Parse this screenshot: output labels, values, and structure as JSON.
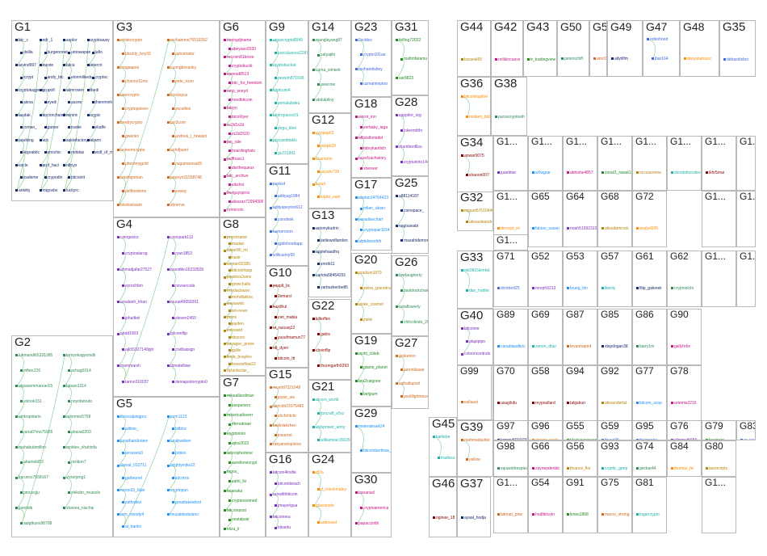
{
  "palette": [
    "#1a2a6c",
    "#2e8b57",
    "#d2691e",
    "#7b2fbe",
    "#1e90ff",
    "#c71585",
    "#228b22",
    "#b8860b",
    "#20b2aa",
    "#8b0000",
    "#4169e1",
    "#ff8c00"
  ],
  "groups": [
    {
      "id": "G1",
      "nodes": [
        "btc_c",
        "doilla",
        "arvind997",
        "tcrypt",
        "cryptokagyen",
        "alexa",
        "laudak",
        "roman_",
        "paulking",
        "legoabtic",
        "circle",
        "trademe",
        "ankitty",
        "mfr_1",
        "burgeonnet",
        "meste",
        "andy_btc",
        "grupofi",
        "eyedi",
        "doctorchain1",
        "gamer",
        "vck",
        "enochic",
        "prof_haci",
        "crypodin",
        "mtgoxbs",
        "explor",
        "untowapan",
        "bitca",
        "elonmilkedc",
        "alimrosen",
        "aszne",
        "minimi",
        "trader",
        "zaktafactory",
        "notidas",
        "nftoys",
        "bitcoinit",
        "luckyrc",
        "cryptoauxy",
        "tafio",
        "intercri",
        "cryptoc",
        "thedi",
        "thienminhanhain",
        "crypic",
        "ekaffe",
        "eltami",
        "wolf_of_malta"
      ]
    },
    {
      "id": "G2",
      "nodes": [
        "lukmandi65331385",
        "mfleic220",
        "akpasemmanuel15",
        "volook151",
        "airdropstario",
        "rana07mo75995",
        "mahabubmillon",
        "ahamobl53",
        "karuncs7558167",
        "pmcsojju",
        "joeolotk",
        "aalgtkuns98708",
        "tomyokagyomdk",
        "achag0314",
        "tatsan1314",
        "noyobioruto",
        "ralonmie5758",
        "ahava0203",
        "moldev_shahinfa",
        "richlion7",
        "victorjeng1",
        "shikder_mustolx",
        "shavea_nischal"
      ]
    },
    {
      "id": "G3",
      "nodes": [
        "mistercrypto",
        "blockly_boy33",
        "magaapes",
        "chance11ms",
        "tatercrypto",
        "cryptopoleen",
        "freebycrypto",
        "gwenko",
        "redeemcrypto",
        "phemmygold",
        "washigonian",
        "delftredomo",
        "blockstream",
        "mohamme75519292",
        "aptostrator",
        "cuongboxasky",
        "pete_rizzo",
        "foxctopus",
        "excellion",
        "jan3com",
        "andrew_l_howard",
        "oofofpaint",
        "nuguinaresa65",
        "papeyo31558748",
        "eveeg",
        "shnerve"
      ]
    },
    {
      "id": "G4",
      "nodes": [
        "coingecko",
        "cryptostarog",
        "ahmadjafar27527",
        "eyrechbm",
        "arsalanh_khan",
        "iphaitkel",
        "abdd1903",
        "ajk55327140pjh",
        "mammarsh",
        "tarioo310037",
        "coocpark112",
        "ryan1853",
        "mandiko16233509",
        "novaecoda",
        "murat49659301",
        "steven2450",
        "bitcoinflip",
        "civilbaisign",
        "donatelliwe",
        "deniapodocrypto0"
      ]
    },
    {
      "id": "G5",
      "nodes": [
        "thescalpingpro",
        "wilime_",
        "jonathandonten",
        "terozami3",
        "danial_010711",
        "gatbrunel",
        "moon33_blue",
        "satfedesi",
        "orm_moody4",
        "al_bankir",
        "jorm1123",
        "bitbloc",
        "vealpariken",
        "britisn",
        "mightymiks22",
        "kdcrkris",
        "cryptopun",
        "greattakeahod",
        "muzaldestelano"
      ]
    },
    {
      "id": "G6",
      "nodes": [
        "boringdjname",
        "abeyaso2020",
        "reccoin81bicee",
        "cryptobuckt",
        "speesd8513",
        "bitc_for_freedom",
        "omp_seeyd",
        "hoodbitcoin",
        "bitzyn",
        "btco0Iyer",
        "sc2d1s2d",
        "zz2d2520",
        "jan_rale",
        "hoardinghats",
        "puffhuss1",
        "darthequeux",
        "bitc_archive",
        "sikshoi",
        "thelguyspros",
        "aleszan72994396",
        "romocoin"
      ]
    },
    {
      "id": "G7",
      "nodes": [
        "mikeallandman",
        "kaspanero",
        "robertcatloverr",
        "4ferodriaer",
        "cryptorioto",
        "ajtss2022",
        "arbrcipherlone",
        "aurelionecrypt",
        "mgos_",
        "sathi_llo",
        "boanaka",
        "crypteosomed",
        "bitcoinpost",
        "nostalpair",
        "eliza_lr"
      ]
    },
    {
      "id": "G8",
      "nodes": [
        "proxxtrame",
        "madan",
        "viktor80_mt",
        "nasir",
        "usman92285",
        "bitcoinhasp",
        "pipixbxx2umv",
        "gniwchallo",
        "erlvdacbazer",
        "mohdtaktos",
        "wanaweb",
        "sm-rever",
        "pumx",
        "jayden",
        "cxfoswid",
        "dezocn",
        "savagec_prime",
        "gullis",
        "linda_bnayles",
        "breezeflow22",
        "dylanleclair_"
      ]
    },
    {
      "id": "G9",
      "nodes": [
        "atgaxcrypto8045",
        "burcukanexi2287",
        "cryptobuckat",
        "nessim871696",
        "kriptcum4",
        "xemalubdeu",
        "elrdropavoc01",
        "dogu_tibet",
        "piizzanditakis",
        "gc231991"
      ]
    },
    {
      "id": "G10",
      "nodes": [
        "jetaplt_bc",
        "0xmarcl",
        "kuzdhul",
        "ciet_mabia",
        "al_razzaq12",
        "yusufmamun77",
        "nft_dyen",
        "bitcoin_ttt"
      ]
    },
    {
      "id": "G11",
      "nodes": [
        "bankof",
        "adityag1984",
        "adityapeyton612",
        "coindesk",
        "kameronsn",
        "rgblnhoodapp",
        "willicanny99"
      ]
    },
    {
      "id": "G12",
      "nodes": [
        "yyyipup62",
        "mzipb29",
        "0xaronrix",
        "uzyahr735",
        "foxurl",
        "kripto_user"
      ]
    },
    {
      "id": "G13",
      "nodes": [
        "antonykudrin",
        "beltewolfanden",
        "applehaadhq",
        "smrtb11",
        "carlota58454291",
        "yarbuzkenbetl5"
      ]
    },
    {
      "id": "G14",
      "nodes": [
        "manglayang87",
        "satyajitn",
        "cuma_simsek",
        "aviecow",
        "abdulpiloy"
      ]
    },
    {
      "id": "G15",
      "nodes": [
        "mcehtl7221048",
        "yiyan_uw",
        "derickb72075480",
        "chchrhlchr",
        "beklrdekrhen",
        "insurent",
        "rakyanstopleine"
      ]
    },
    {
      "id": "G16",
      "nodes": [
        "bitcoin4lindle",
        "bitcoinbeach",
        "runwithbitcoin",
        "jmayerigua",
        "bitcoinera",
        "bitsedu"
      ]
    },
    {
      "id": "G17",
      "nodes": [
        "chelan14764423",
        "milan_ukani",
        "paradisechart",
        "cryptopair1154",
        "alptekinerbilr"
      ]
    },
    {
      "id": "G18",
      "nodes": [
        "cinrot_inrr",
        "verbaby_iaga",
        "offizielloriedel",
        "fabrykantlich",
        "nusxfzachsitory",
        "xhenver"
      ]
    },
    {
      "id": "G19",
      "nodes": [
        "motti_coleb",
        "giants_planet",
        "bra2caignee",
        "belgium"
      ]
    },
    {
      "id": "G20",
      "nodes": [
        "pradwin1879",
        "swiss_grandma",
        "stoke_cosmet",
        "jmilei"
      ]
    },
    {
      "id": "G21",
      "nodes": [
        "decen_world",
        "foxcraft_x0yz",
        "shibpower_army",
        "williamsac35639"
      ]
    },
    {
      "id": "G22",
      "nodes": [
        "killerflex",
        "gabis",
        "cheinflip",
        "thuongarth9293"
      ]
    },
    {
      "id": "G23",
      "nodes": [
        "0xcbbic",
        "crypto101ae",
        "muhandisbey",
        "uzmankriptoo"
      ]
    },
    {
      "id": "G24",
      "nodes": [
        "dt2a",
        "d_checkmaley",
        "glassnode",
        "arbinvest"
      ]
    },
    {
      "id": "G25",
      "nodes": [
        "a88114187",
        "coinspace_",
        "nagisanabi",
        "mazahidemorhwi1"
      ]
    },
    {
      "id": "G26",
      "nodes": [
        "bwdaugherty",
        "bavblockchain",
        "notaflowerly",
        "chilcolindo_2017"
      ]
    },
    {
      "id": "G27",
      "nodes": [
        "grokerino",
        "jaromikasar",
        "valhallapool",
        "poolilightnouse"
      ]
    },
    {
      "id": "G28",
      "nodes": [
        "sappitre_org",
        "lokermitthr",
        "rhumbenfilsu",
        "crypturinto1447"
      ]
    },
    {
      "id": "G29",
      "nodes": [
        "melendesek24",
        "bitcoinbertlnav_mnkt"
      ]
    },
    {
      "id": "G30",
      "nodes": [
        "bananacl",
        "cryptoamerica",
        "papaccintih"
      ]
    },
    {
      "id": "G31",
      "nodes": [
        "feifing72022",
        "mafimfaramu",
        "sar8823"
      ]
    },
    {
      "id": "G32",
      "nodes": [
        "miguel57610440",
        "alexaoleandre"
      ]
    },
    {
      "id": "G33",
      "nodes": [
        "mk0815kimhd",
        "dan_hodler"
      ]
    },
    {
      "id": "G34",
      "nodes": [
        "anwar0075",
        "shaoon007"
      ]
    },
    {
      "id": "G35",
      "nodes": [
        "debashlsbor"
      ]
    },
    {
      "id": "G36",
      "nodes": [
        "bitcoitespilrer",
        "mellam_bbb"
      ]
    },
    {
      "id": "G37",
      "nodes": [
        "ayaal_hodja"
      ]
    },
    {
      "id": "G38",
      "nodes": [
        "pursocryptoeth"
      ]
    },
    {
      "id": "G39",
      "nodes": [
        "mahmudasltar",
        "yellow"
      ]
    },
    {
      "id": "G40",
      "nodes": [
        "bitcoiner",
        "alapipipo",
        "coleoncontrals"
      ]
    },
    {
      "id": "G41",
      "nodes": [
        "21millionco",
        "21millionb"
      ]
    },
    {
      "id": "G42",
      "nodes": [
        "onlikincuess"
      ]
    },
    {
      "id": "G43",
      "nodes": [
        "tr_tradingview"
      ]
    },
    {
      "id": "G44",
      "nodes": [
        "buranki89"
      ]
    },
    {
      "id": "G45",
      "nodes": [
        "kahlebe",
        "tradlocs"
      ]
    },
    {
      "id": "G46",
      "nodes": [
        "oginee_18"
      ]
    },
    {
      "id": "G47",
      "nodes": [
        "robinhood",
        "jbar164"
      ]
    },
    {
      "id": "G48",
      "nodes": [
        "dwiyanatouzc"
      ]
    },
    {
      "id": "G49",
      "nodes": [
        "allyhlfm"
      ]
    },
    {
      "id": "G50",
      "nodes": [
        "peterschiff"
      ]
    },
    {
      "id": "G51",
      "nodes": [
        "anic06564"
      ]
    },
    {
      "id": "G52",
      "nodes": [
        "morph9213"
      ]
    },
    {
      "id": "G53",
      "nodes": [
        "krueg_bln"
      ]
    },
    {
      "id": "G54",
      "nodes": [
        "hodlbitcoin"
      ]
    },
    {
      "id": "G55",
      "nodes": [
        "blackswanearns"
      ]
    },
    {
      "id": "G56",
      "nodes": [
        "finance_flor"
      ]
    },
    {
      "id": "G57",
      "nodes": [
        "liberty"
      ]
    },
    {
      "id": "G58",
      "nodes": [
        "reypoullard"
      ]
    },
    {
      "id": "G59",
      "nodes": [
        "thuya05"
      ]
    },
    {
      "id": "G60",
      "nodes": []
    },
    {
      "id": "G61",
      "nodes": [
        "filip_galenek"
      ]
    },
    {
      "id": "G62",
      "nodes": [
        "cryptonichi"
      ]
    },
    {
      "id": "G63",
      "nodes": []
    },
    {
      "id": "G64",
      "nodes": [
        "noah51992310"
      ]
    },
    {
      "id": "G65",
      "nodes": [
        "fabian_susan"
      ]
    },
    {
      "id": "G66",
      "nodes": [
        "zaynepdenbit"
      ]
    },
    {
      "id": "G67",
      "nodes": [
        "bitcoin_cr"
      ]
    },
    {
      "id": "G68",
      "nodes": [
        "alioudamrock"
      ]
    },
    {
      "id": "G69",
      "nodes": [
        "zenon_dtlur"
      ]
    },
    {
      "id": "G70",
      "nodes": [
        "usagilofu"
      ]
    },
    {
      "id": "G71",
      "nodes": [
        "dcmbert25"
      ]
    },
    {
      "id": "G72",
      "nodes": [
        "analyd325"
      ]
    },
    {
      "id": "G73",
      "nodes": []
    },
    {
      "id": "G74",
      "nodes": [
        "geckar44"
      ]
    },
    {
      "id": "G75",
      "nodes": [
        "marco_strong"
      ]
    },
    {
      "id": "G76",
      "nodes": [
        "slimmat5656"
      ]
    },
    {
      "id": "G77",
      "nodes": [
        "bitcoin_scop"
      ]
    },
    {
      "id": "G78",
      "nodes": [
        "artemis2215"
      ]
    },
    {
      "id": "G79",
      "nodes": [
        "byamnin"
      ]
    },
    {
      "id": "G80",
      "nodes": [
        "laurocripto"
      ]
    },
    {
      "id": "G81",
      "nodes": [
        "logarcrypto"
      ]
    },
    {
      "id": "G82",
      "nodes": []
    },
    {
      "id": "G83",
      "nodes": [
        "ar_isaacs"
      ]
    },
    {
      "id": "G84",
      "nodes": [
        "thomas_fei"
      ]
    },
    {
      "id": "G85",
      "nodes": [
        "staydogan38"
      ]
    },
    {
      "id": "G86",
      "nodes": [
        "barry1m"
      ]
    },
    {
      "id": "G87",
      "nodes": [
        "tevanhapnd"
      ]
    },
    {
      "id": "G88",
      "nodes": []
    },
    {
      "id": "G89",
      "nodes": [
        "canabiasdkric"
      ]
    },
    {
      "id": "G90",
      "nodes": [
        "gallyhrbx"
      ]
    },
    {
      "id": "G91",
      "nodes": [
        "limes1868"
      ]
    },
    {
      "id": "G92",
      "nodes": [
        "alexandertal"
      ]
    },
    {
      "id": "G93",
      "nodes": [
        "cryptic_geep"
      ]
    },
    {
      "id": "G94",
      "nodes": [
        "talgakun"
      ]
    },
    {
      "id": "G95",
      "nodes": [
        "themoonc"
      ]
    },
    {
      "id": "G96",
      "nodes": [
        "dennis_porla"
      ]
    },
    {
      "id": "G97",
      "nodes": [
        "tommy50107317"
      ]
    },
    {
      "id": "G98",
      "nodes": [
        "squarethesplease"
      ]
    },
    {
      "id": "G99",
      "nodes": [
        "esilaast"
      ]
    },
    {
      "id": "G1...",
      "nodes": [
        "juanbiter"
      ]
    },
    {
      "id": "G1...",
      "nodes": [
        "w0wgrar"
      ]
    },
    {
      "id": "G1...",
      "nodes": [
        "abhishe4857"
      ]
    },
    {
      "id": "G1...",
      "nodes": [
        "zonal1_rawat12"
      ]
    },
    {
      "id": "G1...",
      "nodes": [
        "nccusernew"
      ]
    },
    {
      "id": "G1...",
      "nodes": [
        "skonbdocrotes"
      ]
    },
    {
      "id": "G1...",
      "nodes": [
        "ikhr5mar"
      ]
    },
    {
      "id": "G1...",
      "nodes": []
    },
    {
      "id": "G1...",
      "nodes": [
        "decrypt_es"
      ]
    },
    {
      "id": "G1...",
      "nodes": [
        "themoonhalley"
      ]
    },
    {
      "id": "G1...",
      "nodes": []
    },
    {
      "id": "G1...",
      "nodes": [
        "bitman_pow"
      ]
    },
    {
      "id": "G1...",
      "nodes": []
    },
    {
      "id": "G1...",
      "nodes": []
    },
    {
      "id": "G1...",
      "nodes": []
    },
    {
      "id": "G1...",
      "nodes": []
    }
  ]
}
